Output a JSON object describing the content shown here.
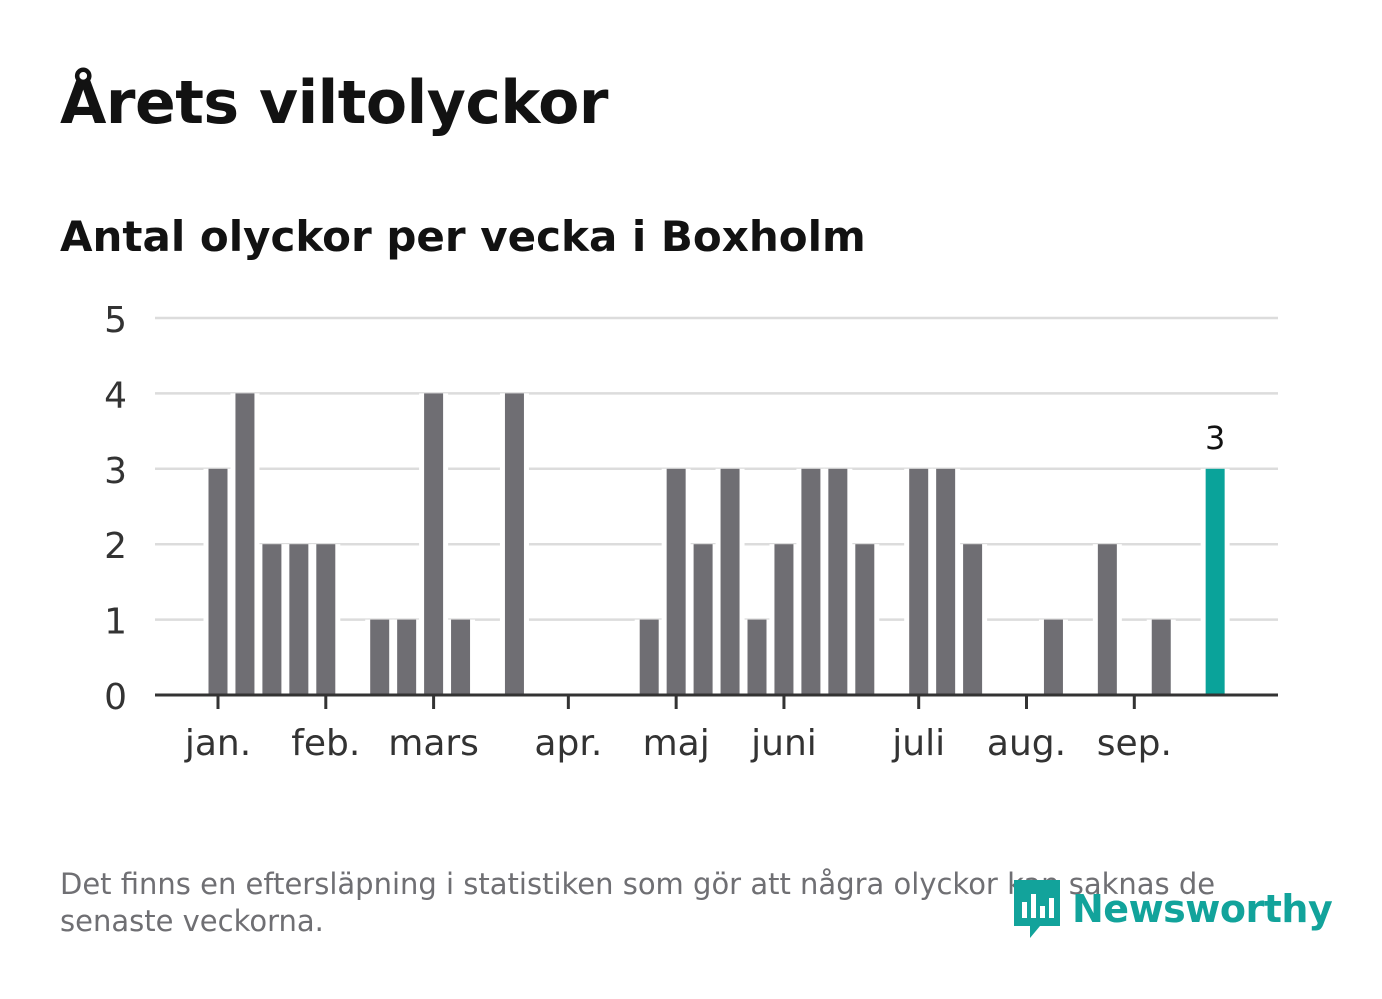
{
  "header": {
    "title": "Årets viltolyckor",
    "subtitle": "Antal olyckor per vecka i Boxholm"
  },
  "chart_data": {
    "type": "bar",
    "title": "Årets viltolyckor",
    "subtitle": "Antal olyckor per vecka i Boxholm",
    "xlabel": "",
    "ylabel": "",
    "ylim": [
      0,
      5
    ],
    "yticks": [
      0,
      1,
      2,
      3,
      4,
      5
    ],
    "grid": true,
    "weeks": [
      1,
      2,
      3,
      4,
      5,
      6,
      7,
      8,
      9,
      10,
      11,
      12,
      13,
      14,
      15,
      16,
      17,
      18,
      19,
      20,
      21,
      22,
      23,
      24,
      25,
      26,
      27,
      28,
      29,
      30,
      31,
      32,
      33,
      34,
      35,
      36,
      37,
      38
    ],
    "values": [
      3,
      4,
      2,
      2,
      2,
      0,
      1,
      1,
      4,
      1,
      0,
      4,
      0,
      0,
      0,
      0,
      1,
      3,
      2,
      3,
      1,
      2,
      3,
      3,
      2,
      0,
      3,
      3,
      2,
      0,
      0,
      1,
      0,
      2,
      0,
      1,
      0,
      3
    ],
    "highlight_index": 37,
    "highlight_label": "3",
    "month_ticks": [
      {
        "label": "jan.",
        "week": 1
      },
      {
        "label": "feb.",
        "week": 5
      },
      {
        "label": "mars",
        "week": 9
      },
      {
        "label": "apr.",
        "week": 14
      },
      {
        "label": "maj",
        "week": 18
      },
      {
        "label": "juni",
        "week": 22
      },
      {
        "label": "juli",
        "week": 27
      },
      {
        "label": "aug.",
        "week": 31
      },
      {
        "label": "sep.",
        "week": 35
      }
    ],
    "colors": {
      "bar": "#6f6e73",
      "highlight": "#0aa39a",
      "grid": "#dcdcdc",
      "axis": "#333333",
      "text": "#333333"
    }
  },
  "footer": {
    "note": "Det finns en eftersläpning i statistiken som gör att några olyckor kan saknas de senaste veckorna.",
    "logo_text": "Newsworthy",
    "logo_icon": "newsworthy-logo-icon"
  }
}
